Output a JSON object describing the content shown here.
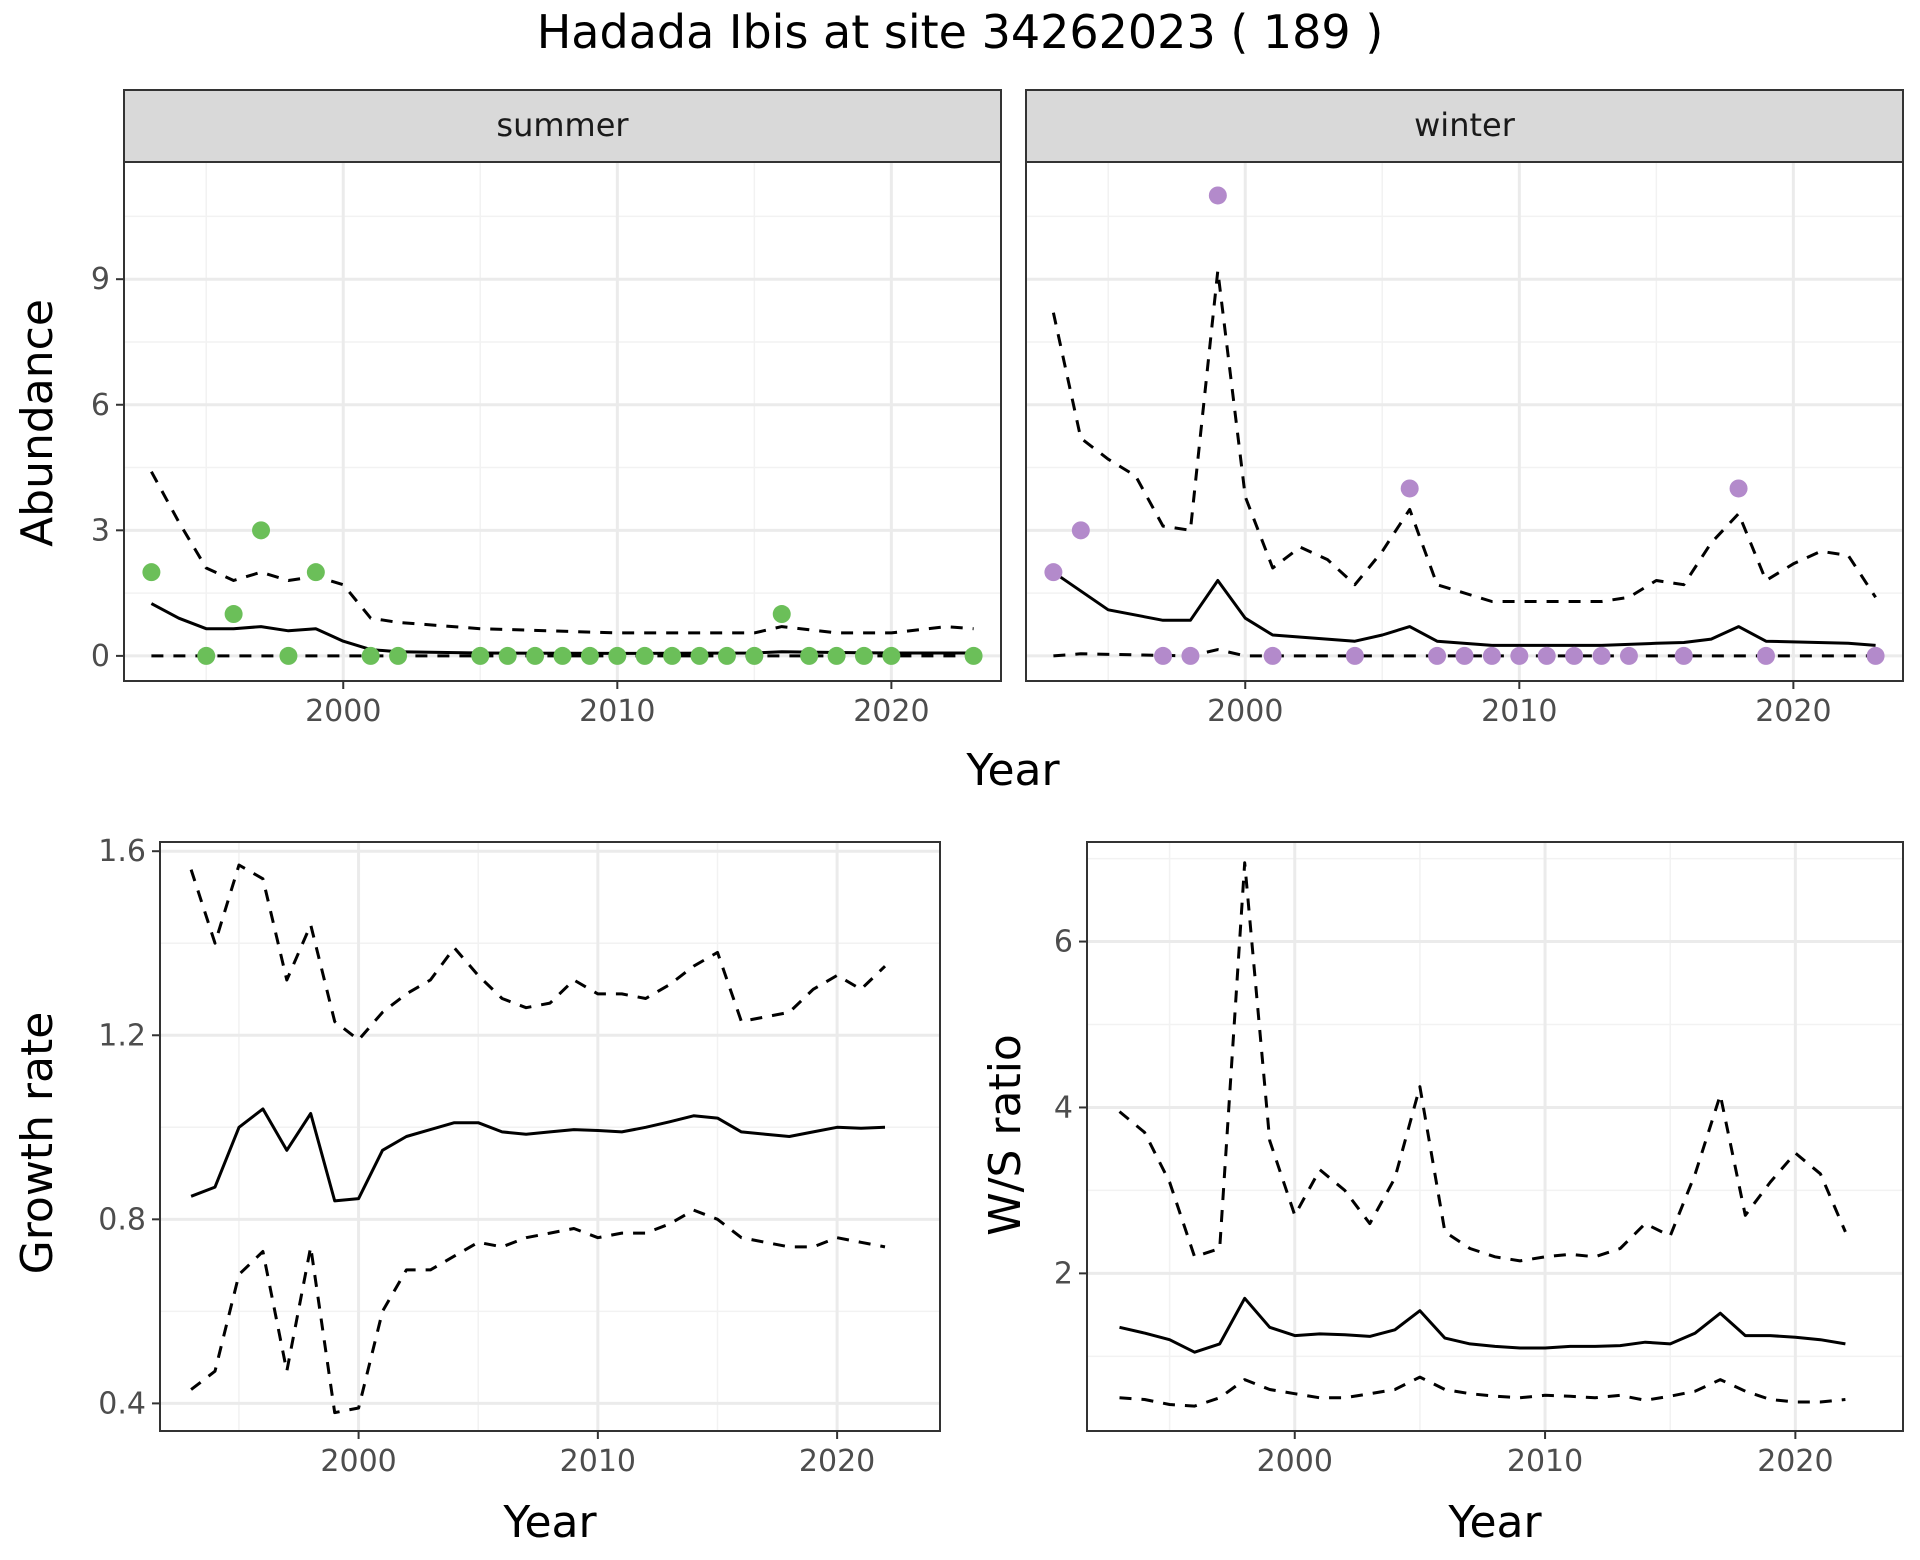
{
  "title": "Hadada Ibis at site 34262023 ( 189 )",
  "colors": {
    "summer_points": "#6BBF59",
    "winter_points": "#B38ACB",
    "lines": "#000000",
    "grid_major": "#EBEBEB",
    "grid_minor": "#F2F2F2",
    "strip_fill": "#D9D9D9"
  },
  "chart_data": [
    {
      "type": "line",
      "facet": "summer",
      "strip_label": "summer",
      "xlabel": "Year",
      "ylabel": "Abundance",
      "xlim": [
        1992,
        2024
      ],
      "ylim": [
        -0.6,
        11.8
      ],
      "xticks": [
        2000,
        2010,
        2020
      ],
      "yticks": [
        0,
        3,
        6,
        9
      ],
      "grid": true,
      "points": {
        "x": [
          1993,
          1995,
          1996,
          1997,
          1998,
          1999,
          2001,
          2002,
          2005,
          2006,
          2007,
          2008,
          2009,
          2010,
          2011,
          2012,
          2013,
          2014,
          2015,
          2016,
          2017,
          2018,
          2019,
          2020,
          2023
        ],
        "y": [
          2,
          0,
          1,
          3,
          0,
          2,
          0,
          0,
          0,
          0,
          0,
          0,
          0,
          0,
          0,
          0,
          0,
          0,
          0,
          1,
          0,
          0,
          0,
          0,
          0
        ]
      },
      "series": [
        {
          "style": "solid",
          "x": [
            1993,
            1994,
            1995,
            1996,
            1997,
            1998,
            1999,
            2000,
            2001,
            2002,
            2005,
            2010,
            2015,
            2016,
            2018,
            2020,
            2022,
            2023
          ],
          "values": [
            1.25,
            0.9,
            0.65,
            0.65,
            0.7,
            0.6,
            0.65,
            0.35,
            0.15,
            0.1,
            0.07,
            0.06,
            0.07,
            0.1,
            0.08,
            0.07,
            0.07,
            0.07
          ]
        },
        {
          "style": "dashed",
          "x": [
            1993,
            1994,
            1995,
            1996,
            1997,
            1998,
            1999,
            2000,
            2001,
            2002,
            2005,
            2010,
            2015,
            2016,
            2018,
            2020,
            2022,
            2023
          ],
          "values": [
            4.4,
            3.2,
            2.1,
            1.8,
            2.0,
            1.8,
            1.9,
            1.7,
            0.9,
            0.8,
            0.65,
            0.55,
            0.55,
            0.7,
            0.55,
            0.55,
            0.7,
            0.65
          ]
        },
        {
          "style": "dashed",
          "x": [
            1993,
            2023
          ],
          "values": [
            0,
            0
          ]
        }
      ]
    },
    {
      "type": "line",
      "facet": "winter",
      "strip_label": "winter",
      "xlabel": "Year",
      "ylabel": "Abundance",
      "xlim": [
        1992,
        2024
      ],
      "ylim": [
        -0.6,
        11.8
      ],
      "xticks": [
        2000,
        2010,
        2020
      ],
      "yticks": [
        0,
        3,
        6,
        9
      ],
      "grid": true,
      "points": {
        "x": [
          1993,
          1994,
          1997,
          1998,
          1999,
          2001,
          2004,
          2006,
          2007,
          2008,
          2009,
          2010,
          2011,
          2012,
          2013,
          2014,
          2016,
          2018,
          2019,
          2023
        ],
        "y": [
          2,
          3,
          0,
          0,
          11,
          0,
          0,
          4,
          0,
          0,
          0,
          0,
          0,
          0,
          0,
          0,
          0,
          4,
          0,
          0
        ]
      },
      "series": [
        {
          "style": "solid",
          "x": [
            1993,
            1995,
            1997,
            1998,
            1999,
            2000,
            2001,
            2004,
            2005,
            2006,
            2007,
            2009,
            2013,
            2015,
            2016,
            2017,
            2018,
            2019,
            2022,
            2023
          ],
          "values": [
            2.0,
            1.1,
            0.85,
            0.85,
            1.8,
            0.9,
            0.5,
            0.35,
            0.5,
            0.7,
            0.35,
            0.25,
            0.25,
            0.3,
            0.32,
            0.4,
            0.7,
            0.35,
            0.3,
            0.25
          ]
        },
        {
          "style": "dashed",
          "x": [
            1993,
            1994,
            1995,
            1996,
            1997,
            1998,
            1999,
            2000,
            2001,
            2002,
            2003,
            2004,
            2005,
            2006,
            2007,
            2009,
            2010,
            2012,
            2013,
            2014,
            2015,
            2016,
            2017,
            2018,
            2019,
            2020,
            2021,
            2022,
            2023
          ],
          "values": [
            8.2,
            5.2,
            4.7,
            4.3,
            3.1,
            3.0,
            9.2,
            3.8,
            2.1,
            2.6,
            2.3,
            1.7,
            2.5,
            3.5,
            1.7,
            1.3,
            1.3,
            1.3,
            1.3,
            1.4,
            1.8,
            1.7,
            2.7,
            3.4,
            1.8,
            2.2,
            2.5,
            2.4,
            1.4
          ]
        },
        {
          "style": "dashed",
          "x": [
            1993,
            1994,
            1998,
            1999,
            2000,
            2023
          ],
          "values": [
            0,
            0.05,
            0,
            0.15,
            0,
            0
          ]
        }
      ]
    },
    {
      "type": "line",
      "xlabel": "Year",
      "ylabel": "Growth rate",
      "xlim": [
        1991.7,
        2024.3
      ],
      "ylim": [
        0.34,
        1.62
      ],
      "xticks": [
        2000,
        2010,
        2020
      ],
      "yticks": [
        0.4,
        0.8,
        1.2,
        1.6
      ],
      "ytick_labels": [
        "0.4",
        "0.8",
        "1.2",
        "1.6"
      ],
      "grid": true,
      "series": [
        {
          "style": "solid",
          "x": [
            1993,
            1994,
            1995,
            1996,
            1997,
            1998,
            1999,
            2000,
            2001,
            2002,
            2003,
            2004,
            2005,
            2006,
            2007,
            2008,
            2009,
            2010,
            2011,
            2012,
            2013,
            2014,
            2015,
            2016,
            2017,
            2018,
            2019,
            2020,
            2021,
            2022
          ],
          "values": [
            0.85,
            0.87,
            1.0,
            1.04,
            0.95,
            1.03,
            0.84,
            0.845,
            0.95,
            0.98,
            0.995,
            1.01,
            1.01,
            0.99,
            0.985,
            0.99,
            0.995,
            0.993,
            0.99,
            1.0,
            1.012,
            1.025,
            1.02,
            0.99,
            0.985,
            0.98,
            0.99,
            1.0,
            0.998,
            1.0
          ]
        },
        {
          "style": "dashed",
          "x": [
            1993,
            1994,
            1995,
            1996,
            1997,
            1998,
            1999,
            2000,
            2001,
            2002,
            2003,
            2004,
            2005,
            2006,
            2007,
            2008,
            2009,
            2010,
            2011,
            2012,
            2013,
            2014,
            2015,
            2016,
            2017,
            2018,
            2019,
            2020,
            2021,
            2022
          ],
          "values": [
            1.56,
            1.4,
            1.57,
            1.54,
            1.32,
            1.44,
            1.23,
            1.19,
            1.25,
            1.29,
            1.32,
            1.39,
            1.33,
            1.28,
            1.26,
            1.27,
            1.32,
            1.29,
            1.29,
            1.28,
            1.31,
            1.35,
            1.38,
            1.23,
            1.24,
            1.25,
            1.3,
            1.33,
            1.3,
            1.35
          ]
        },
        {
          "style": "dashed",
          "x": [
            1993,
            1994,
            1995,
            1996,
            1997,
            1998,
            1999,
            2000,
            2001,
            2002,
            2003,
            2004,
            2005,
            2006,
            2007,
            2008,
            2009,
            2010,
            2011,
            2012,
            2013,
            2014,
            2015,
            2016,
            2017,
            2018,
            2019,
            2020,
            2021,
            2022
          ],
          "values": [
            0.43,
            0.47,
            0.68,
            0.73,
            0.47,
            0.74,
            0.38,
            0.39,
            0.6,
            0.69,
            0.69,
            0.72,
            0.75,
            0.74,
            0.76,
            0.77,
            0.78,
            0.76,
            0.77,
            0.77,
            0.79,
            0.82,
            0.8,
            0.76,
            0.75,
            0.74,
            0.74,
            0.76,
            0.75,
            0.74
          ]
        }
      ]
    },
    {
      "type": "line",
      "xlabel": "Year",
      "ylabel": "W/S ratio",
      "xlim": [
        1991.7,
        2024.3
      ],
      "ylim": [
        0.1,
        7.2
      ],
      "xticks": [
        2000,
        2010,
        2020
      ],
      "yticks": [
        2,
        4,
        6
      ],
      "grid": true,
      "series": [
        {
          "style": "solid",
          "x": [
            1993,
            1994,
            1995,
            1996,
            1997,
            1998,
            1999,
            2000,
            2001,
            2002,
            2003,
            2004,
            2005,
            2006,
            2007,
            2008,
            2009,
            2010,
            2011,
            2012,
            2013,
            2014,
            2015,
            2016,
            2017,
            2018,
            2019,
            2020,
            2021,
            2022
          ],
          "values": [
            1.35,
            1.28,
            1.2,
            1.05,
            1.15,
            1.7,
            1.35,
            1.25,
            1.27,
            1.26,
            1.24,
            1.32,
            1.55,
            1.22,
            1.15,
            1.12,
            1.1,
            1.1,
            1.12,
            1.12,
            1.13,
            1.17,
            1.15,
            1.28,
            1.52,
            1.25,
            1.25,
            1.23,
            1.2,
            1.15
          ]
        },
        {
          "style": "dashed",
          "x": [
            1993,
            1994,
            1995,
            1996,
            1997,
            1998,
            1999,
            2000,
            2001,
            2002,
            2003,
            2004,
            2005,
            2006,
            2007,
            2008,
            2009,
            2010,
            2011,
            2012,
            2013,
            2014,
            2015,
            2016,
            2017,
            2018,
            2019,
            2020,
            2021,
            2022
          ],
          "values": [
            3.95,
            3.7,
            3.1,
            2.2,
            2.3,
            6.95,
            3.6,
            2.7,
            3.25,
            3.0,
            2.6,
            3.15,
            4.25,
            2.5,
            2.3,
            2.2,
            2.15,
            2.2,
            2.23,
            2.2,
            2.3,
            2.6,
            2.45,
            3.2,
            4.15,
            2.7,
            3.1,
            3.45,
            3.2,
            2.5
          ]
        },
        {
          "style": "dashed",
          "x": [
            1993,
            1994,
            1995,
            1996,
            1997,
            1998,
            1999,
            2000,
            2001,
            2002,
            2003,
            2004,
            2005,
            2006,
            2007,
            2008,
            2009,
            2010,
            2011,
            2012,
            2013,
            2014,
            2015,
            2016,
            2017,
            2018,
            2019,
            2020,
            2021,
            2022
          ],
          "values": [
            0.5,
            0.48,
            0.42,
            0.4,
            0.5,
            0.72,
            0.6,
            0.55,
            0.5,
            0.5,
            0.55,
            0.6,
            0.75,
            0.6,
            0.55,
            0.52,
            0.5,
            0.53,
            0.52,
            0.5,
            0.53,
            0.47,
            0.52,
            0.58,
            0.72,
            0.58,
            0.48,
            0.45,
            0.45,
            0.48
          ]
        }
      ]
    }
  ]
}
